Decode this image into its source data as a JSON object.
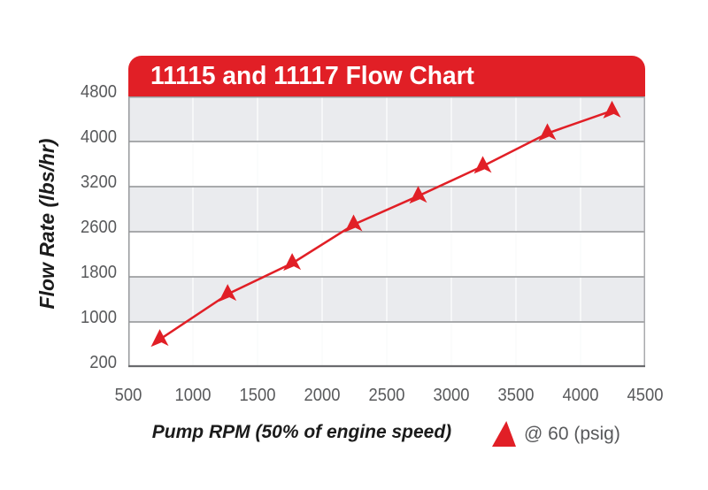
{
  "colors": {
    "brand_red": "#e11f26",
    "band_gray": "#eaebee",
    "grid_horizontal": "#8f9194",
    "grid_vertical_on_gray": "#fafbfc",
    "axis_bottom": "#6a6b6e",
    "axis_left": "#97999c",
    "axis_right": "#a9aaad",
    "tick_text": "#58595b",
    "banner_text": "#ffffff",
    "axis_title_text": "#1b1b1b"
  },
  "chart_data": {
    "type": "line",
    "title": "11115 and 11117 Flow Chart",
    "xlabel": "Pump RPM (50% of engine speed)",
    "ylabel": "Flow Rate (lbs/hr)",
    "x_range": [
      500,
      4500
    ],
    "x_ticks": [
      500,
      1000,
      1500,
      2000,
      2500,
      3000,
      3500,
      4000,
      4500
    ],
    "y_ticks": [
      200,
      1000,
      1800,
      2600,
      3200,
      4000,
      4800
    ],
    "y_axis_note": "tick labels evenly spaced on axis; interval 2600-3200 is 600 while all others are 800",
    "grid": "horizontal gray lines at each y tick; vertical white lines at each x tick visible over gray bands",
    "background_bands": "six alternating bands, gray topmost then white",
    "legend_position": "bottom-right below axis",
    "series": [
      {
        "name": "@ 60 (psig)",
        "marker": "red-triangle",
        "line_color": "#e11f26",
        "points": [
          [
            750,
            700
          ],
          [
            1275,
            1500
          ],
          [
            1775,
            2050
          ],
          [
            2250,
            2700
          ],
          [
            2750,
            3080
          ],
          [
            3250,
            3570
          ],
          [
            3750,
            4150
          ],
          [
            4250,
            4550
          ]
        ]
      }
    ]
  }
}
